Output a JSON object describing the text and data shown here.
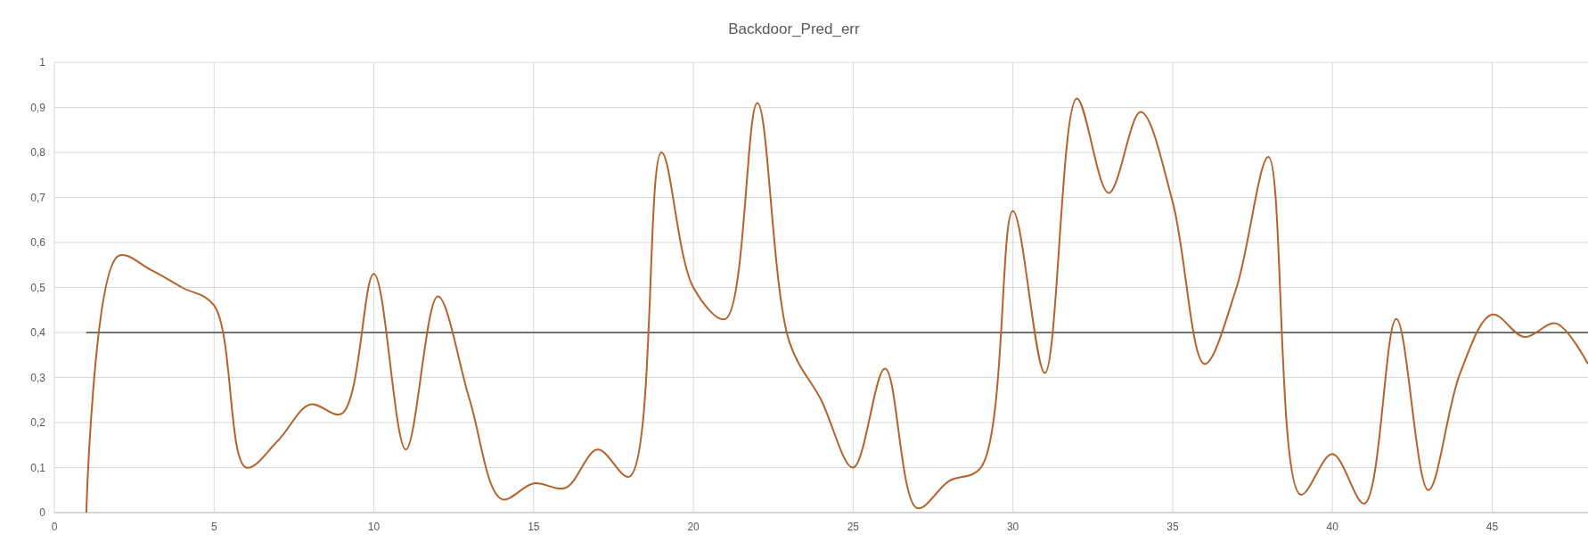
{
  "chart_data": {
    "type": "line",
    "title": "Backdoor_Pred_err",
    "x": [
      1,
      2,
      3,
      4,
      5,
      6,
      7,
      8,
      9,
      10,
      11,
      12,
      13,
      14,
      15,
      16,
      17,
      18,
      19,
      20,
      21,
      22,
      23,
      24,
      25,
      26,
      27,
      28,
      29,
      30,
      31,
      32,
      33,
      34,
      35,
      36,
      37,
      38,
      39,
      40,
      41,
      42,
      43,
      44,
      45,
      46,
      47,
      48
    ],
    "series": [
      {
        "color": "#b5622b",
        "values": [
          0,
          0.57,
          0.54,
          0.5,
          0.46,
          0.1,
          0.16,
          0.24,
          0.22,
          0.53,
          0.14,
          0.48,
          0.25,
          0.03,
          0.065,
          0.055,
          0.14,
          0.08,
          0.8,
          0.5,
          0.43,
          0.91,
          0.38,
          0.25,
          0.1,
          0.32,
          0.01,
          0.07,
          0.1,
          0.67,
          0.31,
          0.92,
          0.71,
          0.89,
          0.69,
          0.33,
          0.5,
          0.79,
          0.04,
          0.13,
          0.02,
          0.43,
          0.05,
          0.31,
          0.44,
          0.39,
          0.42,
          0.33
        ]
      }
    ],
    "xlim": [
      0,
      48
    ],
    "xticks": [
      0,
      5,
      10,
      15,
      20,
      25,
      30,
      35,
      40,
      45
    ],
    "ylim": [
      0,
      1
    ],
    "yticks": [
      0,
      {
        "value": 0.1,
        "label": "0,1"
      },
      {
        "value": 0.2,
        "label": "0,2"
      },
      {
        "value": 0.3,
        "label": "0,3"
      },
      {
        "value": 0.4,
        "label": "0,4"
      },
      {
        "value": 0.5,
        "label": "0,5"
      },
      {
        "value": 0.6,
        "label": "0,6"
      },
      {
        "value": 0.7,
        "label": "0,7"
      },
      {
        "value": 0.8,
        "label": "0,8"
      },
      {
        "value": 0.9,
        "label": "0,9"
      },
      1
    ],
    "ref_lines": [
      {
        "axis": "y",
        "value": 0.4,
        "color": "#707070"
      }
    ],
    "grid": true,
    "marker": "none",
    "line_style": "solid"
  }
}
